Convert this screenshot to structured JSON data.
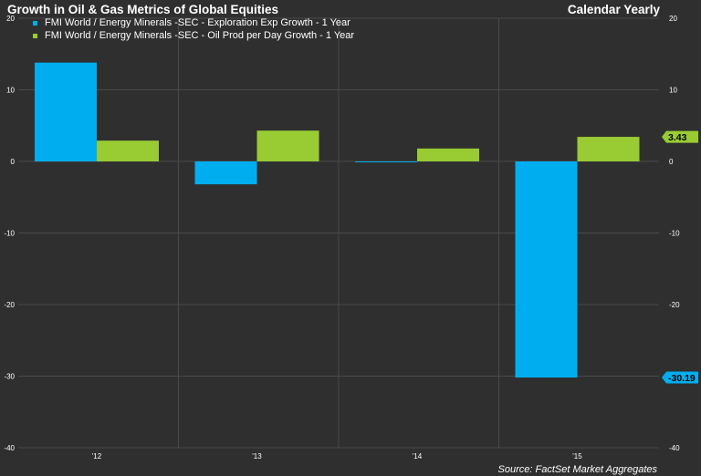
{
  "header": {
    "title": "Growth in Oil & Gas Metrics of Global Equities",
    "subtitle": "Calendar Yearly"
  },
  "footer": {
    "source": "Source: FactSet Market Aggregates"
  },
  "colors": {
    "background": "#2f2f2f",
    "grid": "#4a4a4a",
    "exploration": "#00aeef",
    "oil_prod": "#99cc33"
  },
  "chart_data": {
    "type": "bar",
    "categories": [
      "'12",
      "'13",
      "'14",
      "'15"
    ],
    "series": [
      {
        "name": "FMI World / Energy Minerals -SEC - Exploration Exp Growth - 1 Year",
        "values": [
          13.8,
          -3.2,
          -0.1,
          -30.19
        ],
        "color": "#00aeef",
        "last_value_label": "-30.19"
      },
      {
        "name": "FMI World / Energy Minerals -SEC - Oil Prod per Day Growth - 1 Year",
        "values": [
          2.9,
          4.3,
          1.8,
          3.43
        ],
        "color": "#99cc33",
        "last_value_label": "3.43"
      }
    ],
    "ylim": [
      -40,
      20
    ],
    "y_ticks": [
      20,
      10,
      0,
      -10,
      -20,
      -30,
      -40
    ],
    "grid": true,
    "legend": "top-left",
    "xlabel": "",
    "ylabel": ""
  }
}
